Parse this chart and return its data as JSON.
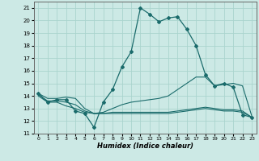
{
  "xlabel": "Humidex (Indice chaleur)",
  "bg_color": "#cce9e5",
  "grid_color": "#aad4ce",
  "line_color": "#1a6b6b",
  "xlim": [
    -0.5,
    23.5
  ],
  "ylim": [
    11,
    21.5
  ],
  "yticks": [
    11,
    12,
    13,
    14,
    15,
    16,
    17,
    18,
    19,
    20,
    21
  ],
  "xticks": [
    0,
    1,
    2,
    3,
    4,
    5,
    6,
    7,
    8,
    9,
    10,
    11,
    12,
    13,
    14,
    15,
    16,
    17,
    18,
    19,
    20,
    21,
    22,
    23
  ],
  "line1_x": [
    0,
    1,
    2,
    3,
    4,
    5,
    6,
    7,
    8,
    9,
    10,
    11,
    12,
    13,
    14,
    15,
    16,
    17,
    18,
    19,
    20,
    21,
    22,
    23
  ],
  "line1_y": [
    14.2,
    13.5,
    13.7,
    13.7,
    12.8,
    12.6,
    11.5,
    13.5,
    14.5,
    16.3,
    17.5,
    21.0,
    20.5,
    19.9,
    20.2,
    20.3,
    19.3,
    18.0,
    15.7,
    14.8,
    15.0,
    14.7,
    12.5,
    12.3
  ],
  "line2_x": [
    0,
    1,
    2,
    3,
    4,
    5,
    6,
    7,
    8,
    9,
    10,
    11,
    12,
    13,
    14,
    15,
    16,
    17,
    18,
    19,
    20,
    21,
    22,
    23
  ],
  "line2_y": [
    14.2,
    13.8,
    13.8,
    13.9,
    13.8,
    13.0,
    12.6,
    12.7,
    13.0,
    13.3,
    13.5,
    13.6,
    13.7,
    13.8,
    14.0,
    14.5,
    15.0,
    15.5,
    15.5,
    14.8,
    14.9,
    15.0,
    14.8,
    12.4
  ],
  "line3_x": [
    0,
    1,
    2,
    3,
    4,
    5,
    6,
    7,
    8,
    9,
    10,
    11,
    12,
    13,
    14,
    15,
    16,
    17,
    18,
    19,
    20,
    21,
    22,
    23
  ],
  "line3_y": [
    14.0,
    13.5,
    13.5,
    13.2,
    13.0,
    12.7,
    12.6,
    12.6,
    12.6,
    12.6,
    12.6,
    12.6,
    12.6,
    12.6,
    12.6,
    12.7,
    12.8,
    12.9,
    13.0,
    12.9,
    12.8,
    12.8,
    12.7,
    12.3
  ],
  "line4_x": [
    0,
    1,
    2,
    3,
    4,
    5,
    6,
    7,
    8,
    9,
    10,
    11,
    12,
    13,
    14,
    15,
    16,
    17,
    18,
    19,
    20,
    21,
    22,
    23
  ],
  "line4_y": [
    14.1,
    13.6,
    13.6,
    13.5,
    13.3,
    12.8,
    12.6,
    12.6,
    12.7,
    12.7,
    12.7,
    12.7,
    12.7,
    12.7,
    12.7,
    12.8,
    12.9,
    13.0,
    13.1,
    13.0,
    12.9,
    12.9,
    12.8,
    12.3
  ]
}
